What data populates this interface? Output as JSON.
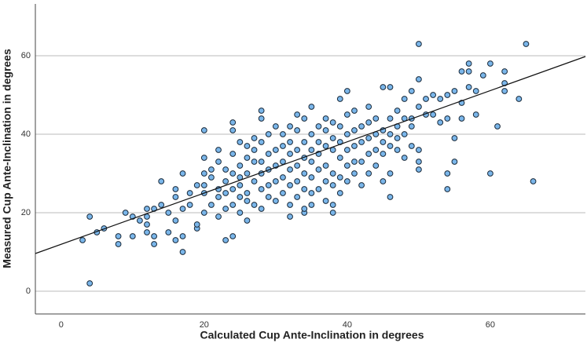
{
  "chart_data": {
    "type": "scatter",
    "x_label": "Calculated Cup Ante-Inclination in degrees",
    "y_label": "Measured Cup Ante-Inclination in degrees",
    "x": [
      3,
      4,
      4,
      5,
      6,
      8,
      8,
      9,
      10,
      10,
      11,
      12,
      12,
      12,
      12,
      13,
      13,
      13,
      14,
      14,
      15,
      15,
      16,
      16,
      16,
      16,
      17,
      17,
      17,
      17,
      18,
      18,
      19,
      19,
      19,
      20,
      20,
      20,
      20,
      20,
      20,
      21,
      21,
      21,
      22,
      22,
      22,
      22,
      22,
      23,
      23,
      23,
      23,
      23,
      24,
      24,
      24,
      24,
      24,
      24,
      24,
      25,
      25,
      25,
      25,
      25,
      25,
      26,
      26,
      26,
      26,
      26,
      26,
      27,
      27,
      27,
      27,
      27,
      28,
      28,
      28,
      28,
      28,
      28,
      28,
      29,
      29,
      29,
      29,
      29,
      30,
      30,
      30,
      30,
      30,
      31,
      31,
      31,
      31,
      31,
      32,
      32,
      32,
      32,
      32,
      32,
      32,
      33,
      33,
      33,
      33,
      33,
      33,
      34,
      34,
      34,
      34,
      34,
      34,
      34,
      35,
      35,
      35,
      35,
      35,
      35,
      35,
      36,
      36,
      36,
      36,
      36,
      37,
      37,
      37,
      37,
      37,
      37,
      38,
      38,
      38,
      38,
      38,
      38,
      38,
      39,
      39,
      39,
      39,
      39,
      39,
      40,
      40,
      40,
      40,
      40,
      40,
      41,
      41,
      41,
      41,
      41,
      42,
      42,
      42,
      42,
      43,
      43,
      43,
      43,
      43,
      44,
      44,
      44,
      44,
      45,
      45,
      45,
      45,
      45,
      46,
      46,
      46,
      46,
      46,
      46,
      47,
      47,
      47,
      47,
      48,
      48,
      48,
      48,
      49,
      49,
      49,
      49,
      50,
      50,
      50,
      50,
      50,
      50,
      51,
      51,
      52,
      52,
      53,
      53,
      54,
      54,
      54,
      54,
      55,
      55,
      55,
      56,
      56,
      56,
      57,
      57,
      57,
      58,
      58,
      59,
      60,
      60,
      61,
      62,
      62,
      62,
      64,
      65,
      66
    ],
    "values": [
      13,
      19,
      2,
      15,
      16,
      14,
      12,
      20,
      19,
      14,
      18,
      17,
      21,
      19,
      15,
      21,
      14,
      12,
      22,
      28,
      15,
      20,
      13,
      18,
      24,
      26,
      14,
      10,
      21,
      30,
      22,
      25,
      27,
      16,
      17,
      20,
      25,
      27,
      30,
      34,
      41,
      22,
      29,
      31,
      24,
      26,
      33,
      36,
      19,
      13,
      21,
      25,
      28,
      31,
      14,
      22,
      26,
      30,
      35,
      41,
      43,
      20,
      24,
      27,
      29,
      32,
      38,
      18,
      23,
      25,
      30,
      34,
      37,
      22,
      28,
      33,
      36,
      39,
      21,
      26,
      30,
      33,
      38,
      44,
      46,
      24,
      27,
      31,
      35,
      40,
      23,
      28,
      32,
      36,
      42,
      25,
      29,
      33,
      37,
      40,
      19,
      22,
      27,
      31,
      35,
      38,
      42,
      24,
      28,
      32,
      36,
      41,
      45,
      20,
      21,
      26,
      30,
      34,
      38,
      44,
      22,
      25,
      29,
      33,
      36,
      40,
      47,
      26,
      31,
      35,
      38,
      42,
      23,
      28,
      32,
      37,
      41,
      44,
      20,
      22,
      27,
      30,
      36,
      39,
      43,
      25,
      29,
      34,
      38,
      42,
      49,
      28,
      32,
      36,
      40,
      45,
      51,
      30,
      33,
      37,
      41,
      46,
      27,
      33,
      38,
      42,
      30,
      35,
      39,
      43,
      47,
      32,
      36,
      40,
      44,
      28,
      35,
      38,
      41,
      52,
      24,
      30,
      37,
      40,
      44,
      52,
      36,
      39,
      42,
      46,
      34,
      40,
      44,
      49,
      37,
      42,
      44,
      51,
      31,
      33,
      36,
      47,
      54,
      63,
      45,
      49,
      45,
      50,
      43,
      49,
      26,
      30,
      44,
      50,
      33,
      39,
      51,
      44,
      48,
      56,
      52,
      56,
      58,
      45,
      51,
      55,
      30,
      58,
      42,
      51,
      53,
      56,
      49,
      63,
      28
    ],
    "color": "#7ab6ea",
    "trend_line": {
      "x": [
        -3.6,
        73.3
      ],
      "y": [
        9.6,
        59.8
      ]
    },
    "xlim": [
      -3.6,
      73.3
    ],
    "ylim": [
      -5.8,
      73.2
    ],
    "xticks": [
      0,
      20,
      40,
      60
    ],
    "yticks": [
      0,
      20,
      40,
      60
    ],
    "grid": true
  }
}
